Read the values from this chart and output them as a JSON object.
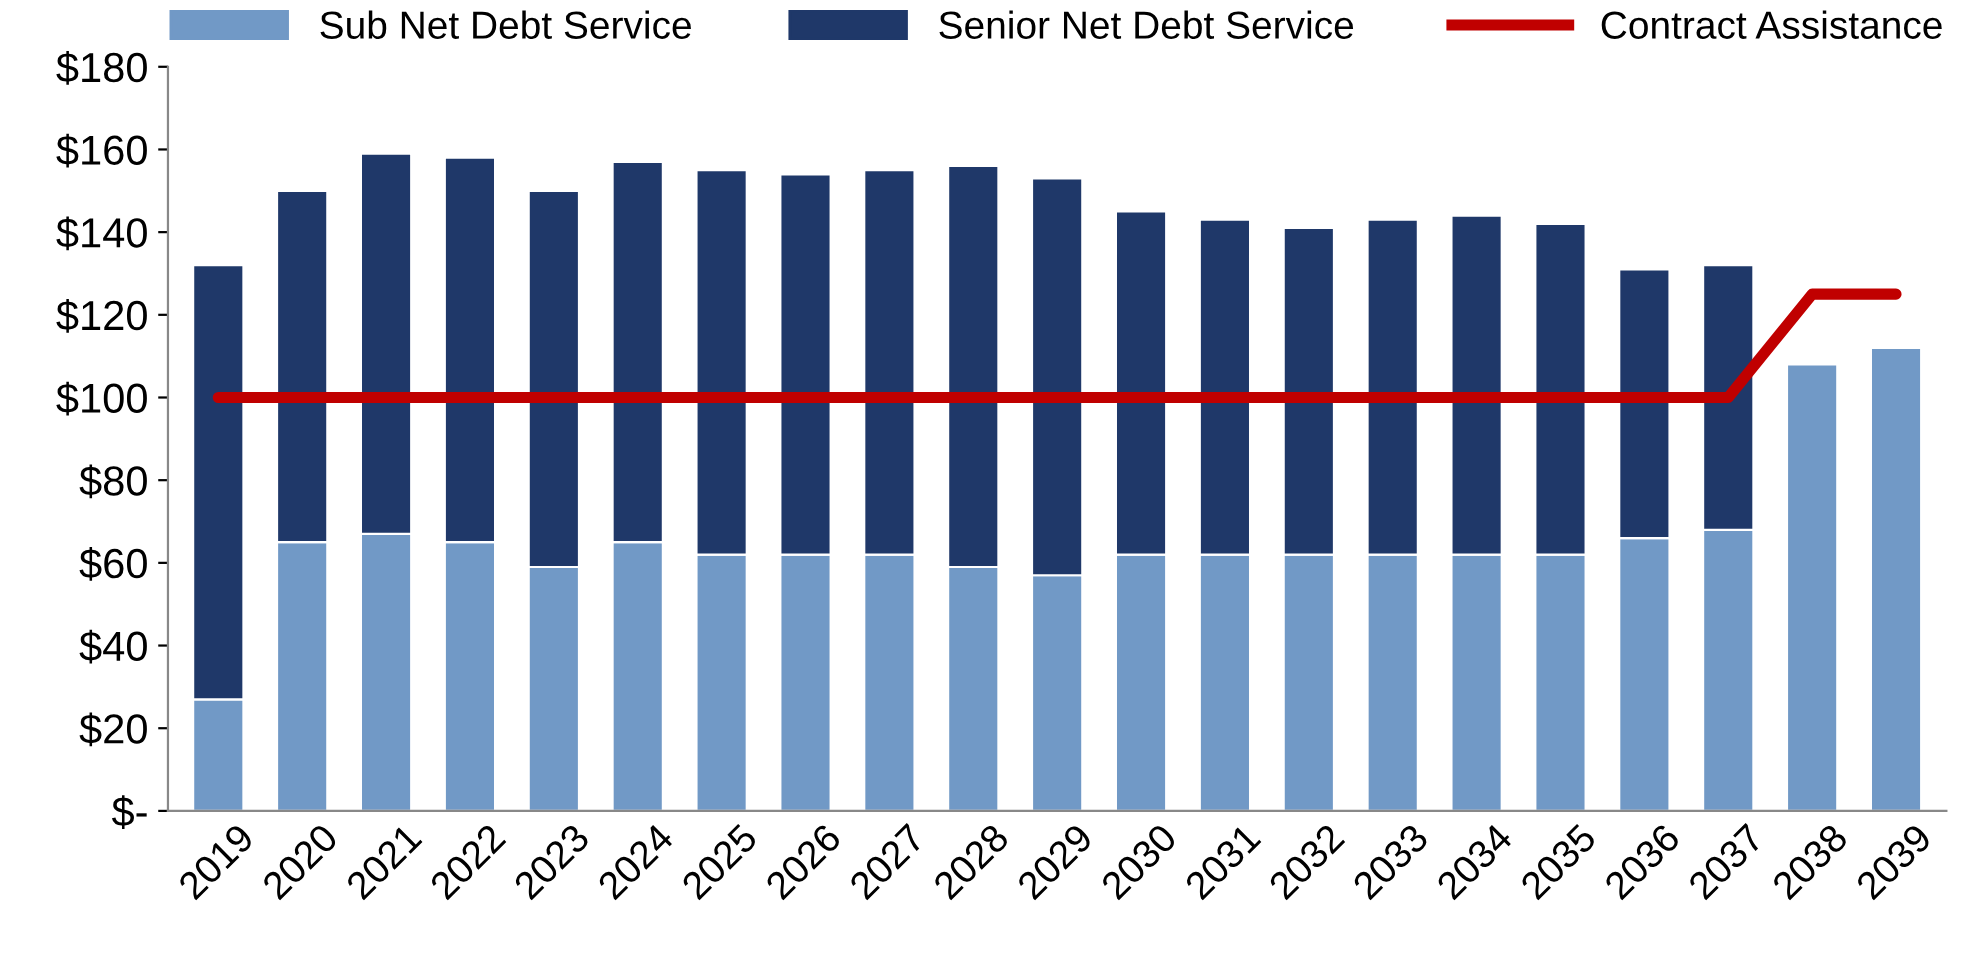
{
  "chart_data": {
    "type": "bar",
    "stacked": true,
    "categories": [
      "2019",
      "2020",
      "2021",
      "2022",
      "2023",
      "2024",
      "2025",
      "2026",
      "2027",
      "2028",
      "2029",
      "2030",
      "2031",
      "2032",
      "2033",
      "2034",
      "2035",
      "2036",
      "2037",
      "2038",
      "2039"
    ],
    "series": [
      {
        "name": "Sub Net Debt Service",
        "color": "#7199c6",
        "values": [
          27,
          65,
          67,
          65,
          59,
          65,
          62,
          62,
          62,
          59,
          57,
          62,
          62,
          62,
          62,
          62,
          62,
          66,
          68,
          108,
          112
        ]
      },
      {
        "name": "Senior Net Debt Service",
        "color": "#1f3869",
        "values": [
          105,
          85,
          92,
          93,
          91,
          92,
          93,
          92,
          93,
          97,
          96,
          83,
          81,
          79,
          81,
          82,
          80,
          65,
          64,
          null,
          null
        ]
      },
      {
        "name": "Contract Assistance",
        "type": "line",
        "color": "#c00000",
        "values": [
          100,
          100,
          100,
          100,
          100,
          100,
          100,
          100,
          100,
          100,
          100,
          100,
          100,
          100,
          100,
          100,
          100,
          100,
          100,
          125,
          125
        ]
      }
    ],
    "ylim": [
      0,
      180
    ],
    "yticks": [
      {
        "value": 0,
        "label": "$-"
      },
      {
        "value": 20,
        "label": "$20"
      },
      {
        "value": 40,
        "label": "$40"
      },
      {
        "value": 60,
        "label": "$60"
      },
      {
        "value": 80,
        "label": "$80"
      },
      {
        "value": 100,
        "label": "$100"
      },
      {
        "value": 120,
        "label": "$120"
      },
      {
        "value": 140,
        "label": "$140"
      },
      {
        "value": 160,
        "label": "$160"
      },
      {
        "value": 180,
        "label": "$180"
      }
    ],
    "grid": false,
    "legend": "top"
  }
}
